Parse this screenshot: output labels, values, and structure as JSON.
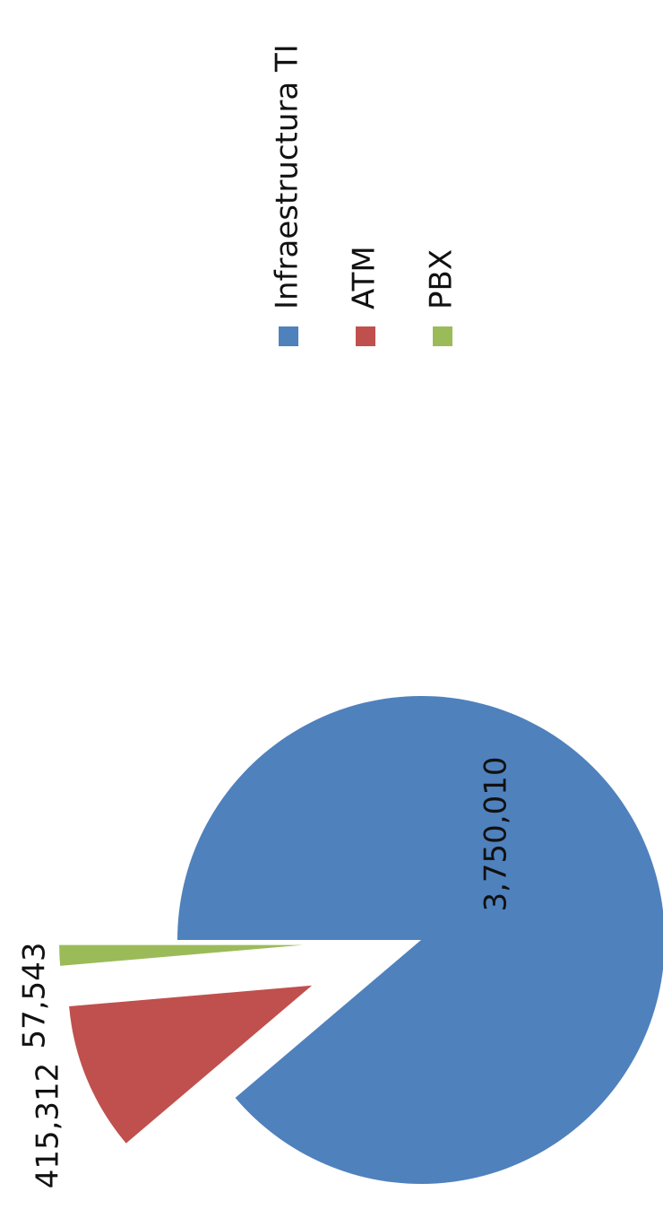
{
  "chart_data": {
    "type": "pie",
    "categories": [
      "Infraestructura TI",
      "ATM",
      "PBX"
    ],
    "values": [
      3750010,
      415312,
      57543
    ],
    "value_labels": [
      "3,750,010",
      "415,312",
      "57,543"
    ],
    "colors": [
      "#4f81bd",
      "#c0504d",
      "#9bbb59"
    ],
    "legend": "right"
  }
}
